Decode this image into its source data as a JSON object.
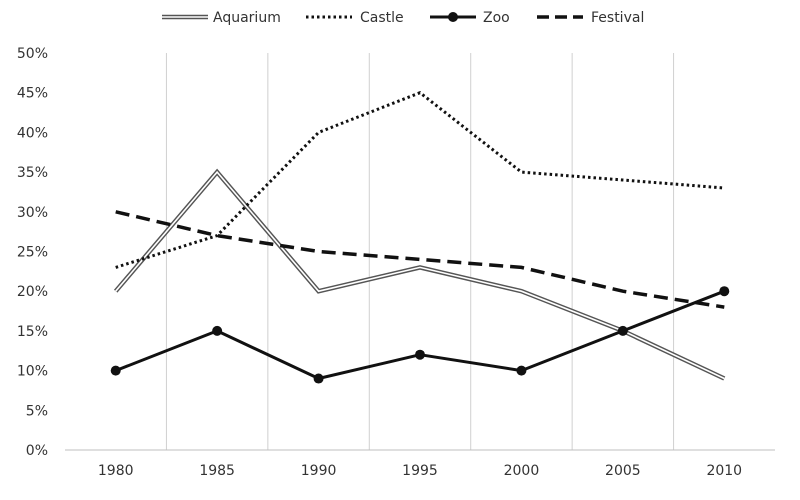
{
  "chart_data": {
    "type": "line",
    "title": "",
    "xlabel": "",
    "ylabel": "",
    "x": [
      1980,
      1985,
      1990,
      1995,
      2000,
      2005,
      2010
    ],
    "x_tick_labels": [
      "1980",
      "1985",
      "1990",
      "1995",
      "2000",
      "2005",
      "2010"
    ],
    "ylim": [
      0,
      50
    ],
    "y_tick_labels": [
      "0%",
      "5%",
      "10%",
      "15%",
      "20%",
      "25%",
      "30%",
      "35%",
      "40%",
      "45%",
      "50%"
    ],
    "y_unit": "%",
    "grid": "vertical",
    "legend_position": "top",
    "series": [
      {
        "name": "Aquarium",
        "style": "double-line",
        "color": "#444444",
        "values": [
          20,
          35,
          20,
          23,
          20,
          15,
          9
        ]
      },
      {
        "name": "Castle",
        "style": "dotted",
        "color": "#111111",
        "values": [
          23,
          27,
          40,
          45,
          35,
          34,
          33
        ]
      },
      {
        "name": "Zoo",
        "style": "solid-with-markers",
        "color": "#111111",
        "values": [
          10,
          15,
          9,
          12,
          10,
          15,
          20
        ]
      },
      {
        "name": "Festival",
        "style": "dashed",
        "color": "#111111",
        "values": [
          30,
          27,
          25,
          24,
          23,
          20,
          18
        ]
      }
    ]
  }
}
